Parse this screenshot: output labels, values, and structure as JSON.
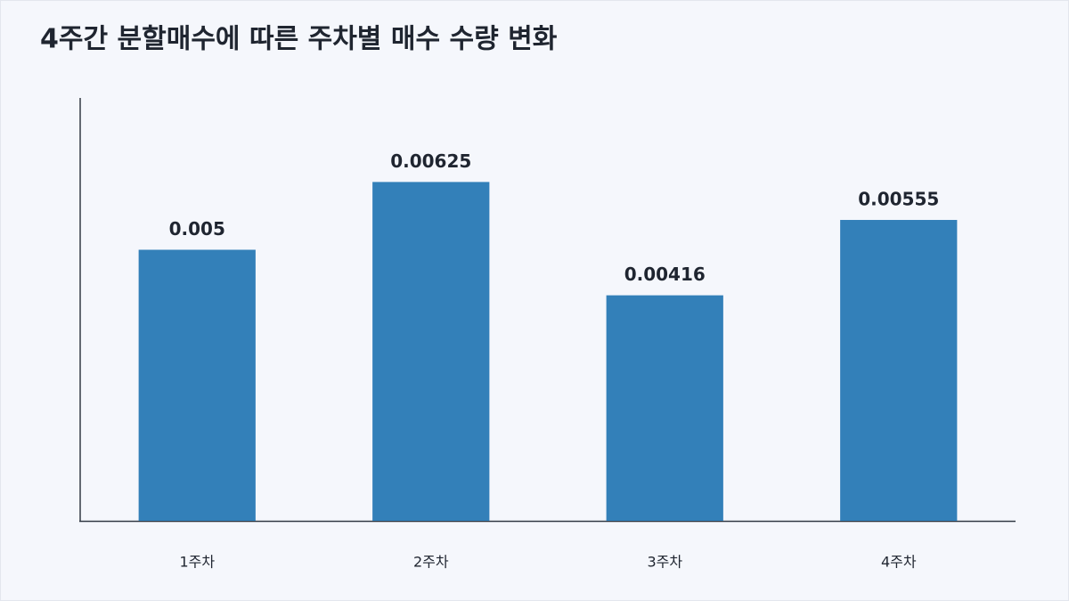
{
  "chart_data": {
    "type": "bar",
    "title": "4주간 분할매수에 따른 주차별 매수 수량 변화",
    "categories": [
      "1주차",
      "2주차",
      "3주차",
      "4주차"
    ],
    "values": [
      0.005,
      0.00625,
      0.00416,
      0.00555
    ],
    "color": "#3380b9",
    "ylim": [
      0,
      0.0078
    ]
  }
}
